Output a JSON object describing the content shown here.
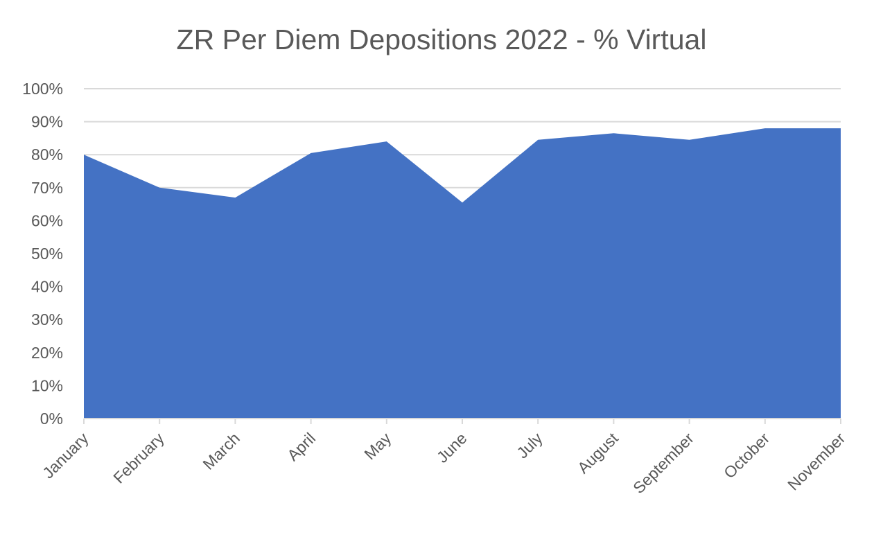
{
  "chart_data": {
    "type": "area",
    "title": "ZR Per Diem Depositions 2022 - % Virtual",
    "categories": [
      "January",
      "February",
      "March",
      "April",
      "May",
      "June",
      "July",
      "August",
      "September",
      "October",
      "November"
    ],
    "series": [
      {
        "values": [
          80,
          70,
          67,
          80.5,
          84,
          65.5,
          84.5,
          86.5,
          84.5,
          88,
          88
        ]
      }
    ],
    "ylim": [
      0,
      100
    ],
    "yticks": [
      0,
      10,
      20,
      30,
      40,
      50,
      60,
      70,
      80,
      90,
      100
    ],
    "ytick_labels": [
      "0%",
      "10%",
      "20%",
      "30%",
      "40%",
      "50%",
      "60%",
      "70%",
      "80%",
      "90%",
      "100%"
    ],
    "grid": true,
    "legend": "none",
    "colors": {
      "fill": "#4472c4",
      "grid": "#d9d9d9",
      "text": "#595959"
    }
  }
}
